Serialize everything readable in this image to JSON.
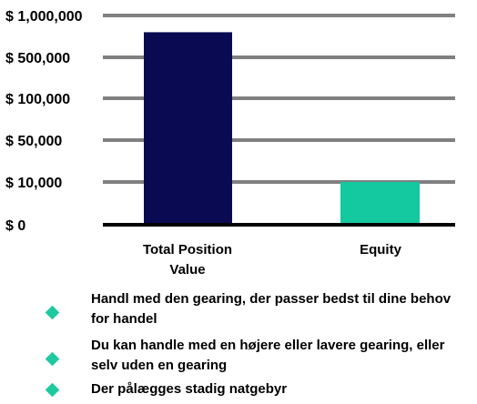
{
  "chart_data": {
    "type": "bar",
    "title": "",
    "xlabel": "",
    "ylabel": "",
    "categories": [
      "Total Position Value",
      "Equity"
    ],
    "values": [
      800000,
      10000
    ],
    "y_ticks": [
      "$ 0",
      "$ 10,000",
      "$ 50,000",
      "$ 100,000",
      "$ 500,000",
      "$ 1,000,000"
    ],
    "y_tick_values": [
      0,
      10000,
      50000,
      100000,
      500000,
      1000000
    ],
    "y_scale": "stepped (non-linear tick spacing)",
    "grid": true,
    "colors": [
      "#0a0a52",
      "#14c8a0"
    ],
    "gridline_color": "#808080"
  },
  "bullets": [
    {
      "text": "Handl med den gearing, der passer bedst til dine behov for handel",
      "icon": "diamond-icon",
      "color": "#1fc9a0"
    },
    {
      "text": "Du kan handle med en højere eller lavere gearing, eller selv uden en gearing",
      "icon": "diamond-icon",
      "color": "#1fc9a0"
    },
    {
      "text": "Der pålægges stadig natgebyr",
      "icon": "diamond-icon",
      "color": "#1fc9a0"
    }
  ]
}
